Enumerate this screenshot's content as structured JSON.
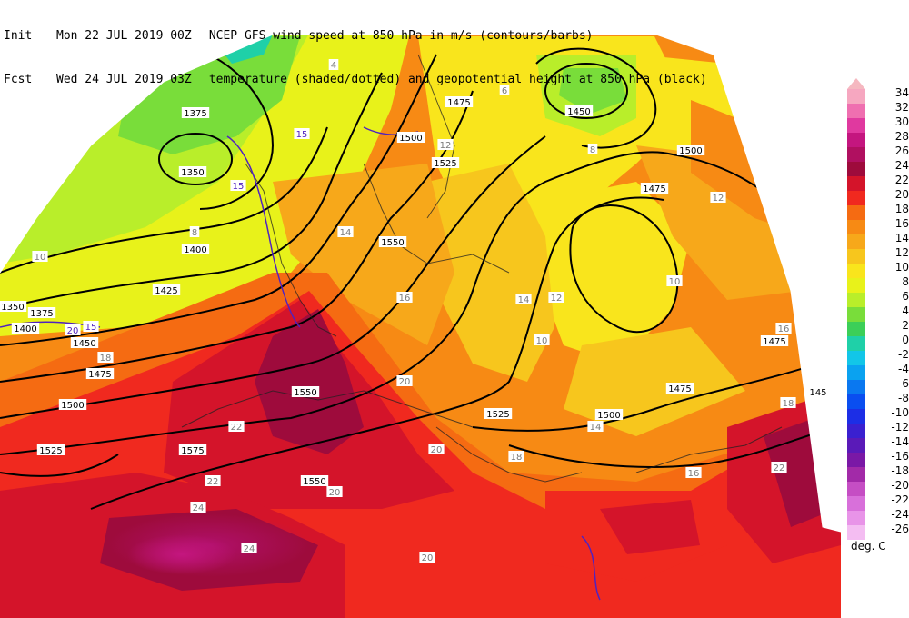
{
  "header": {
    "init_label": "Init",
    "init_value": "Mon 22 JUL 2019 00Z",
    "fcst_label": "Fcst",
    "fcst_value": "Wed 24 JUL 2019 03Z",
    "title_line1": "NCEP GFS wind speed at 850 hPa in m/s (contours/barbs)",
    "title_line2": "temperature (shaded/dotted) and geopotential height at 850 hPa (black)"
  },
  "colorbar": {
    "unit": "deg. C",
    "levels": [
      {
        "label": "34",
        "color": "#f6a7c0"
      },
      {
        "label": "32",
        "color": "#ef6fb0"
      },
      {
        "label": "30",
        "color": "#e0399f"
      },
      {
        "label": "28",
        "color": "#c4167f"
      },
      {
        "label": "26",
        "color": "#b01060"
      },
      {
        "label": "24",
        "color": "#9e0b3c"
      },
      {
        "label": "22",
        "color": "#d4142a"
      },
      {
        "label": "20",
        "color": "#f0291f"
      },
      {
        "label": "18",
        "color": "#f56b12"
      },
      {
        "label": "16",
        "color": "#f78a14"
      },
      {
        "label": "14",
        "color": "#f7a81a"
      },
      {
        "label": "12",
        "color": "#f7c61d"
      },
      {
        "label": "10",
        "color": "#f9e51c"
      },
      {
        "label": "8",
        "color": "#e8f21a"
      },
      {
        "label": "6",
        "color": "#b9ee2a"
      },
      {
        "label": "4",
        "color": "#79dd3a"
      },
      {
        "label": "2",
        "color": "#3ccf58"
      },
      {
        "label": "0",
        "color": "#1fd0a8"
      },
      {
        "label": "-2",
        "color": "#12c6e8"
      },
      {
        "label": "-4",
        "color": "#0aa2f0"
      },
      {
        "label": "-6",
        "color": "#0a78f0"
      },
      {
        "label": "-8",
        "color": "#0a4ef0"
      },
      {
        "label": "-10",
        "color": "#1c2ee6"
      },
      {
        "label": "-12",
        "color": "#3a20d0"
      },
      {
        "label": "-14",
        "color": "#5a1ab8"
      },
      {
        "label": "-16",
        "color": "#7a18a6"
      },
      {
        "label": "-18",
        "color": "#a22aa8"
      },
      {
        "label": "-20",
        "color": "#c54ec4"
      },
      {
        "label": "-22",
        "color": "#d870da"
      },
      {
        "label": "-24",
        "color": "#e894e8"
      },
      {
        "label": "-26",
        "color": "#f4bdf2"
      }
    ]
  },
  "map": {
    "height_labels": [
      {
        "text": "1375"
      },
      {
        "text": "1350"
      },
      {
        "text": "1400"
      },
      {
        "text": "1425"
      },
      {
        "text": "1350"
      },
      {
        "text": "1375"
      },
      {
        "text": "1400"
      },
      {
        "text": "1450"
      },
      {
        "text": "1475"
      },
      {
        "text": "1500"
      },
      {
        "text": "1525"
      },
      {
        "text": "1475"
      },
      {
        "text": "1450"
      },
      {
        "text": "1500"
      },
      {
        "text": "1475"
      },
      {
        "text": "1525"
      },
      {
        "text": "1550"
      },
      {
        "text": "1550"
      },
      {
        "text": "1525"
      },
      {
        "text": "1575"
      },
      {
        "text": "1550"
      },
      {
        "text": "1500"
      },
      {
        "text": "1475"
      },
      {
        "text": "1500"
      },
      {
        "text": "1475"
      },
      {
        "text": "145"
      }
    ],
    "temperature_labels": [
      {
        "text": "8"
      },
      {
        "text": "4"
      },
      {
        "text": "10"
      },
      {
        "text": "12"
      },
      {
        "text": "14"
      },
      {
        "text": "16"
      },
      {
        "text": "18"
      },
      {
        "text": "20"
      },
      {
        "text": "22"
      },
      {
        "text": "24"
      },
      {
        "text": "10"
      },
      {
        "text": "12"
      },
      {
        "text": "14"
      },
      {
        "text": "16"
      },
      {
        "text": "18"
      },
      {
        "text": "20"
      },
      {
        "text": "22"
      },
      {
        "text": "12"
      },
      {
        "text": "10"
      },
      {
        "text": "8"
      },
      {
        "text": "6"
      },
      {
        "text": "16"
      },
      {
        "text": "14"
      },
      {
        "text": "20"
      },
      {
        "text": "22"
      },
      {
        "text": "18"
      },
      {
        "text": "24"
      },
      {
        "text": "20"
      }
    ],
    "wind_labels": [
      {
        "text": "15"
      },
      {
        "text": "20"
      },
      {
        "text": "15"
      },
      {
        "text": "15"
      }
    ]
  }
}
